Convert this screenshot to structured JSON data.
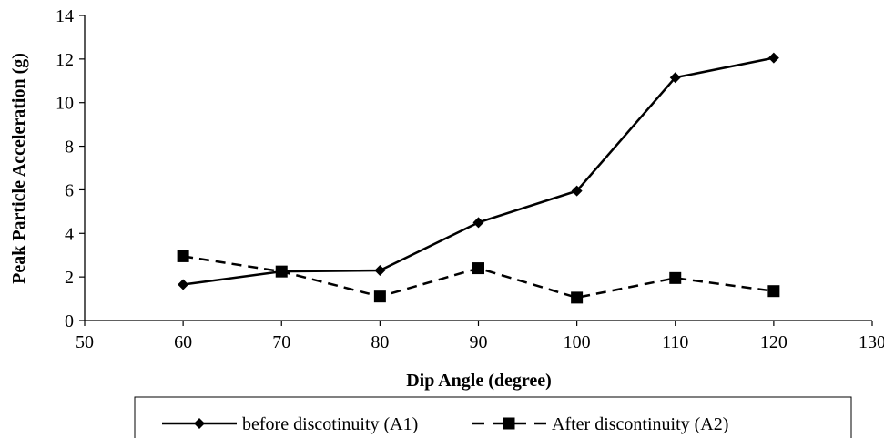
{
  "chart_data": {
    "type": "line",
    "title": "",
    "xlabel": "Dip Angle  (degree)",
    "ylabel": "Peak Particle Acceleration  (g)",
    "xlim": [
      50,
      130
    ],
    "ylim": [
      0,
      14
    ],
    "xticks": [
      50,
      60,
      70,
      80,
      90,
      100,
      110,
      120,
      130
    ],
    "yticks": [
      0,
      2,
      4,
      6,
      8,
      10,
      12,
      14
    ],
    "grid": false,
    "legend_position": "bottom",
    "series": [
      {
        "name": "before discotinuity (A1)",
        "marker": "diamond",
        "line": "solid",
        "color": "#000000",
        "x": [
          60,
          70,
          80,
          90,
          100,
          110,
          120
        ],
        "y": [
          1.65,
          2.25,
          2.3,
          4.5,
          5.95,
          11.15,
          12.05
        ]
      },
      {
        "name": "After discontinuity (A2)",
        "marker": "square",
        "line": "dashed",
        "color": "#000000",
        "x": [
          60,
          70,
          80,
          90,
          100,
          110,
          120
        ],
        "y": [
          2.95,
          2.25,
          1.1,
          2.4,
          1.05,
          1.95,
          1.35
        ]
      }
    ]
  }
}
